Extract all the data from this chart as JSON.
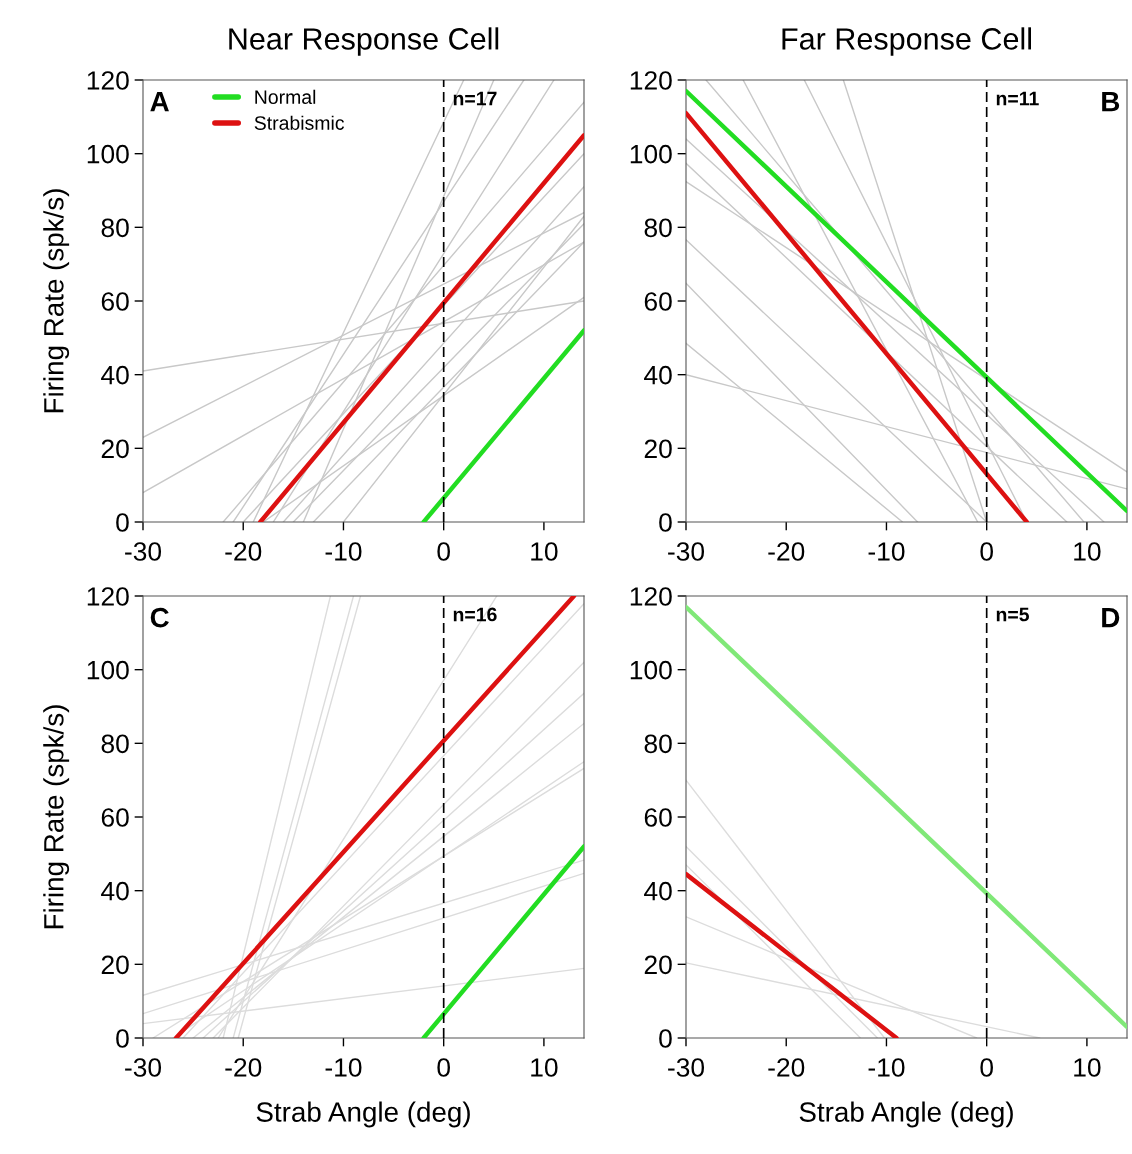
{
  "chart_data": [
    {
      "type": "line",
      "title": "Near Response Cell",
      "ylabel": "Firing Rate (spk/s)",
      "xlim": [
        -30,
        14
      ],
      "ylim": [
        0,
        120
      ],
      "xticks": [
        -30,
        -20,
        -10,
        0,
        10
      ],
      "yticks": [
        0,
        20,
        40,
        60,
        80,
        100,
        120
      ],
      "grid": false,
      "legend": "top",
      "annotations": [
        "A",
        "n=17"
      ],
      "ref_lines": [
        {
          "axis": "x",
          "value": 0,
          "color": "#000000",
          "line_style": "dashed"
        }
      ],
      "series": [
        {
          "color": "#c8c8c8",
          "x": [
            -30,
            14
          ],
          "values": [
            41,
            60
          ]
        },
        {
          "color": "#c8c8c8",
          "x": [
            -30,
            14
          ],
          "values": [
            23,
            84
          ]
        },
        {
          "color": "#c8c8c8",
          "x": [
            -30,
            14
          ],
          "values": [
            8,
            76
          ]
        },
        {
          "color": "#c8c8c8",
          "x": [
            -22,
            14
          ],
          "values": [
            0,
            114
          ]
        },
        {
          "color": "#c8c8c8",
          "x": [
            -21,
            8
          ],
          "values": [
            0,
            120
          ]
        },
        {
          "color": "#c8c8c8",
          "x": [
            -20,
            14
          ],
          "values": [
            0,
            100
          ]
        },
        {
          "color": "#c8c8c8",
          "x": [
            -19,
            2
          ],
          "values": [
            0,
            120
          ]
        },
        {
          "color": "#c8c8c8",
          "x": [
            -18,
            14
          ],
          "values": [
            0,
            61
          ]
        },
        {
          "color": "#c8c8c8",
          "x": [
            -17,
            11
          ],
          "values": [
            0,
            120
          ]
        },
        {
          "color": "#c8c8c8",
          "x": [
            -16,
            14
          ],
          "values": [
            0,
            91
          ]
        },
        {
          "color": "#c8c8c8",
          "x": [
            -15,
            14
          ],
          "values": [
            0,
            81
          ]
        },
        {
          "color": "#c8c8c8",
          "x": [
            -14,
            5
          ],
          "values": [
            0,
            120
          ]
        },
        {
          "color": "#c8c8c8",
          "x": [
            -13,
            14
          ],
          "values": [
            0,
            76
          ]
        },
        {
          "color": "#c8c8c8",
          "x": [
            -10,
            14
          ],
          "values": [
            0,
            83
          ]
        },
        {
          "name": "Normal",
          "color": "#22dd22",
          "x": [
            -2,
            14
          ],
          "values": [
            0,
            52
          ]
        },
        {
          "name": "Strabismic",
          "color": "#dd1111",
          "x": [
            -18.3,
            14
          ],
          "values": [
            0,
            105
          ]
        }
      ]
    },
    {
      "type": "line",
      "title": "Far Response Cell",
      "xlim": [
        -30,
        14
      ],
      "ylim": [
        0,
        120
      ],
      "xticks": [
        -30,
        -20,
        -10,
        0,
        10
      ],
      "yticks": [
        0,
        20,
        40,
        60,
        80,
        100,
        120
      ],
      "grid": false,
      "annotations": [
        "B",
        "n=11"
      ],
      "ref_lines": [
        {
          "axis": "x",
          "value": 0,
          "color": "#000000",
          "line_style": "dashed"
        }
      ],
      "series": [
        {
          "color": "#c8c8c8",
          "x": [
            -30,
            14
          ],
          "values": [
            40,
            9
          ]
        },
        {
          "color": "#c8c8c8",
          "x": [
            -30,
            -8.4
          ],
          "values": [
            48.5,
            0
          ]
        },
        {
          "color": "#c8c8c8",
          "x": [
            -30,
            -6.9
          ],
          "values": [
            64.8,
            0
          ]
        },
        {
          "color": "#c8c8c8",
          "x": [
            -30,
            0
          ],
          "values": [
            76.6,
            0
          ]
        },
        {
          "color": "#c8c8c8",
          "x": [
            -30,
            14
          ],
          "values": [
            92.4,
            13.6
          ]
        },
        {
          "color": "#c8c8c8",
          "x": [
            -30,
            8
          ],
          "values": [
            97.4,
            0
          ]
        },
        {
          "color": "#c8c8c8",
          "x": [
            -30,
            11.7
          ],
          "values": [
            104,
            0
          ]
        },
        {
          "color": "#c8c8c8",
          "x": [
            -28,
            9.7
          ],
          "values": [
            120,
            0
          ]
        },
        {
          "color": "#c8c8c8",
          "x": [
            -24.3,
            -0.9
          ],
          "values": [
            120,
            0
          ]
        },
        {
          "color": "#c8c8c8",
          "x": [
            -18.2,
            4
          ],
          "values": [
            120,
            0
          ]
        },
        {
          "color": "#c8c8c8",
          "x": [
            -14.3,
            0
          ],
          "values": [
            120,
            0
          ]
        },
        {
          "color": "#22dd22",
          "x": [
            -30,
            14
          ],
          "values": [
            117,
            3
          ]
        },
        {
          "color": "#dd1111",
          "x": [
            -30,
            4
          ],
          "values": [
            111,
            0
          ]
        }
      ]
    },
    {
      "type": "line",
      "xlabel": "Strab Angle (deg)",
      "ylabel": "Firing Rate (spk/s)",
      "xlim": [
        -30,
        14
      ],
      "ylim": [
        0,
        120
      ],
      "xticks": [
        -30,
        -20,
        -10,
        0,
        10
      ],
      "yticks": [
        0,
        20,
        40,
        60,
        80,
        100,
        120
      ],
      "grid": false,
      "annotations": [
        "C",
        "n=16"
      ],
      "ref_lines": [
        {
          "axis": "x",
          "value": 0,
          "color": "#000000",
          "line_style": "dashed"
        }
      ],
      "series": [
        {
          "color": "#dcdcdc",
          "x": [
            -22,
            -11.3
          ],
          "values": [
            0,
            120
          ]
        },
        {
          "color": "#dcdcdc",
          "x": [
            -21,
            -9
          ],
          "values": [
            0,
            120
          ]
        },
        {
          "color": "#dcdcdc",
          "x": [
            -20.5,
            -8.3
          ],
          "values": [
            0,
            120
          ]
        },
        {
          "color": "#dcdcdc",
          "x": [
            -30,
            14
          ],
          "values": [
            3.9,
            18.9
          ]
        },
        {
          "color": "#dcdcdc",
          "x": [
            -30,
            14
          ],
          "values": [
            11.6,
            48.3
          ]
        },
        {
          "color": "#dcdcdc",
          "x": [
            -30,
            14
          ],
          "values": [
            6.6,
            44.7
          ]
        },
        {
          "color": "#dcdcdc",
          "x": [
            -29,
            14
          ],
          "values": [
            0,
            73.2
          ]
        },
        {
          "color": "#dcdcdc",
          "x": [
            -27,
            14
          ],
          "values": [
            0,
            75
          ]
        },
        {
          "color": "#dcdcdc",
          "x": [
            -25,
            14
          ],
          "values": [
            0,
            85.4
          ]
        },
        {
          "color": "#dcdcdc",
          "x": [
            -24,
            14
          ],
          "values": [
            0,
            93.6
          ]
        },
        {
          "color": "#dcdcdc",
          "x": [
            -23,
            14
          ],
          "values": [
            0,
            102
          ]
        },
        {
          "color": "#dcdcdc",
          "x": [
            -26,
            14
          ],
          "values": [
            0,
            117.9
          ]
        },
        {
          "color": "#dcdcdc",
          "x": [
            -22.5,
            5.3
          ],
          "values": [
            0,
            120
          ]
        },
        {
          "color": "#22dd22",
          "x": [
            -2,
            14
          ],
          "values": [
            0,
            52
          ]
        },
        {
          "color": "#dd1111",
          "x": [
            -26.7,
            13
          ],
          "values": [
            0,
            120
          ]
        }
      ]
    },
    {
      "type": "line",
      "xlabel": "Strab Angle (deg)",
      "xlim": [
        -30,
        14
      ],
      "ylim": [
        0,
        120
      ],
      "xticks": [
        -30,
        -20,
        -10,
        0,
        10
      ],
      "yticks": [
        0,
        20,
        40,
        60,
        80,
        100,
        120
      ],
      "grid": false,
      "annotations": [
        "D",
        "n=5"
      ],
      "ref_lines": [
        {
          "axis": "x",
          "value": 0,
          "color": "#000000",
          "line_style": "dashed"
        }
      ],
      "series": [
        {
          "color": "#dcdcdc",
          "x": [
            -30,
            -10.2
          ],
          "values": [
            70,
            0
          ]
        },
        {
          "color": "#dcdcdc",
          "x": [
            -30,
            -10.9
          ],
          "values": [
            52,
            0
          ]
        },
        {
          "color": "#dcdcdc",
          "x": [
            -30,
            -12.6
          ],
          "values": [
            47,
            0
          ]
        },
        {
          "color": "#dcdcdc",
          "x": [
            -30,
            -1
          ],
          "values": [
            32.9,
            0
          ]
        },
        {
          "color": "#dcdcdc",
          "x": [
            -30,
            5.3
          ],
          "values": [
            20.4,
            0
          ]
        },
        {
          "color": "#80e878",
          "x": [
            -30,
            14
          ],
          "values": [
            117,
            3
          ]
        },
        {
          "color": "#dd1111",
          "x": [
            -30,
            -9
          ],
          "values": [
            44.5,
            0
          ]
        }
      ]
    }
  ]
}
